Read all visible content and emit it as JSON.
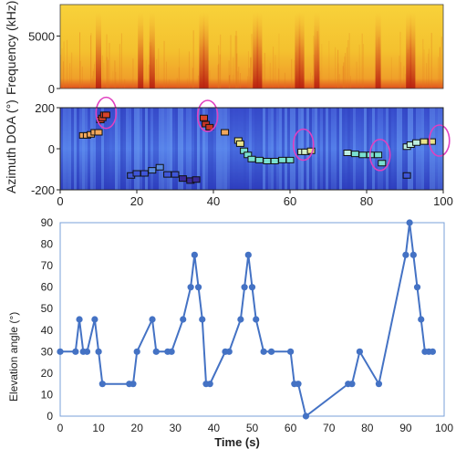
{
  "chart_data": [
    {
      "type": "heatmap",
      "panel": "spectrogram",
      "ylabel": "Frequency (kHz)",
      "yticks": [
        "5000",
        "0"
      ],
      "ylim": [
        0,
        8000
      ],
      "xlim": [
        0,
        100
      ],
      "grid": false,
      "dark_streak_times": [
        10,
        21,
        24,
        37,
        38,
        51,
        52,
        62,
        63,
        67,
        83,
        91,
        92
      ]
    },
    {
      "type": "scatter",
      "panel": "azimuth",
      "ylabel": "Azimuth DOA (°)",
      "yticks": [
        "200",
        "0",
        "-200"
      ],
      "xticks": [
        "0",
        "20",
        "40",
        "60",
        "80",
        "100"
      ],
      "xlim": [
        0,
        100
      ],
      "ylim": [
        -200,
        200
      ],
      "grid": false,
      "points": [
        {
          "x": 6,
          "y": 65,
          "color": "#f2a85c"
        },
        {
          "x": 7,
          "y": 65,
          "color": "#f2a85c"
        },
        {
          "x": 8,
          "y": 70,
          "color": "#f2a85c"
        },
        {
          "x": 9,
          "y": 80,
          "color": "#f2a85c"
        },
        {
          "x": 10,
          "y": 80,
          "color": "#f2a85c"
        },
        {
          "x": 10.5,
          "y": 140,
          "color": "#d8432a"
        },
        {
          "x": 11,
          "y": 150,
          "color": "#d8432a"
        },
        {
          "x": 11.5,
          "y": 165,
          "color": "#d8432a"
        },
        {
          "x": 12,
          "y": 165,
          "color": "#d8432a"
        },
        {
          "x": 18.5,
          "y": -130,
          "color": "#3f56d8"
        },
        {
          "x": 20,
          "y": -120,
          "color": "#3f56d8"
        },
        {
          "x": 22,
          "y": -120,
          "color": "#3f56d8"
        },
        {
          "x": 24,
          "y": -105,
          "color": "#5a8ae0"
        },
        {
          "x": 26,
          "y": -90,
          "color": "#5a8ae0"
        },
        {
          "x": 28,
          "y": -125,
          "color": "#3f56d8"
        },
        {
          "x": 30,
          "y": -125,
          "color": "#3f56d8"
        },
        {
          "x": 32,
          "y": -145,
          "color": "#3a2a9a"
        },
        {
          "x": 34,
          "y": -155,
          "color": "#3a2a9a"
        },
        {
          "x": 35.5,
          "y": -150,
          "color": "#3a2a9a"
        },
        {
          "x": 37.5,
          "y": 150,
          "color": "#d8432a"
        },
        {
          "x": 38,
          "y": 120,
          "color": "#c73526"
        },
        {
          "x": 39,
          "y": 105,
          "color": "#c73526"
        },
        {
          "x": 43,
          "y": 80,
          "color": "#f2a85c"
        },
        {
          "x": 46.5,
          "y": 40,
          "color": "#e9e38a"
        },
        {
          "x": 47,
          "y": 25,
          "color": "#e9e38a"
        },
        {
          "x": 48,
          "y": -10,
          "color": "#7ae0d0"
        },
        {
          "x": 49,
          "y": -30,
          "color": "#7ae0d0"
        },
        {
          "x": 50,
          "y": -50,
          "color": "#7ae0d0"
        },
        {
          "x": 52,
          "y": -55,
          "color": "#7ae0d0"
        },
        {
          "x": 54,
          "y": -60,
          "color": "#7ae0d0"
        },
        {
          "x": 56,
          "y": -60,
          "color": "#7ae0d0"
        },
        {
          "x": 58,
          "y": -55,
          "color": "#7ae0d0"
        },
        {
          "x": 60,
          "y": -55,
          "color": "#7ae0d0"
        },
        {
          "x": 63,
          "y": -15,
          "color": "#d3f0c8"
        },
        {
          "x": 64,
          "y": -15,
          "color": "#d3f0c8"
        },
        {
          "x": 65.5,
          "y": -10,
          "color": "#e9e38a"
        },
        {
          "x": 75,
          "y": -20,
          "color": "#bdeee0"
        },
        {
          "x": 77,
          "y": -25,
          "color": "#7ae0d0"
        },
        {
          "x": 79,
          "y": -30,
          "color": "#7ae0d0"
        },
        {
          "x": 81,
          "y": -30,
          "color": "#7ae0d0"
        },
        {
          "x": 83,
          "y": -30,
          "color": "#7ae0d0"
        },
        {
          "x": 84,
          "y": -70,
          "color": "#7ae0d0"
        },
        {
          "x": 90.5,
          "y": -130,
          "color": "#3f56d8"
        },
        {
          "x": 90.5,
          "y": 10,
          "color": "#bdeee0"
        },
        {
          "x": 91.5,
          "y": 20,
          "color": "#bdeee0"
        },
        {
          "x": 93,
          "y": 30,
          "color": "#bdeee0"
        },
        {
          "x": 95,
          "y": 35,
          "color": "#e9e38a"
        },
        {
          "x": 97,
          "y": 35,
          "color": "#e9e38a"
        }
      ],
      "circles": [
        {
          "x": 12,
          "y": 175
        },
        {
          "x": 38.5,
          "y": 160
        },
        {
          "x": 63.5,
          "y": 20
        },
        {
          "x": 83.5,
          "y": -30
        },
        {
          "x": 99,
          "y": 40
        }
      ]
    },
    {
      "type": "line",
      "panel": "elevation",
      "ylabel": "Elevation angle (°)",
      "xlabel": "Time (s)",
      "xticks": [
        "0",
        "10",
        "20",
        "30",
        "40",
        "50",
        "60",
        "70",
        "80",
        "90",
        "100"
      ],
      "yticks": [
        "0",
        "10",
        "20",
        "30",
        "40",
        "50",
        "60",
        "70",
        "80",
        "90"
      ],
      "xlim": [
        0,
        100
      ],
      "ylim": [
        0,
        90
      ],
      "grid": false,
      "color": "#4472c4",
      "x": [
        0,
        4,
        5,
        6,
        7,
        9,
        10,
        11,
        18,
        19,
        20,
        24,
        25,
        28,
        29,
        32,
        34,
        35,
        36,
        37,
        38,
        39,
        43,
        44,
        47,
        48,
        49,
        50,
        51,
        53,
        55,
        60,
        61,
        62,
        64,
        75,
        76,
        78,
        83,
        90,
        91,
        92,
        93,
        94,
        95,
        96,
        97
      ],
      "y": [
        30,
        30,
        45,
        30,
        30,
        45,
        30,
        15,
        15,
        15,
        30,
        45,
        30,
        30,
        30,
        45,
        60,
        75,
        60,
        45,
        15,
        15,
        30,
        30,
        45,
        60,
        75,
        60,
        45,
        30,
        30,
        30,
        15,
        15,
        0,
        15,
        15,
        30,
        15,
        75,
        90,
        75,
        60,
        45,
        30,
        30,
        30
      ]
    }
  ]
}
